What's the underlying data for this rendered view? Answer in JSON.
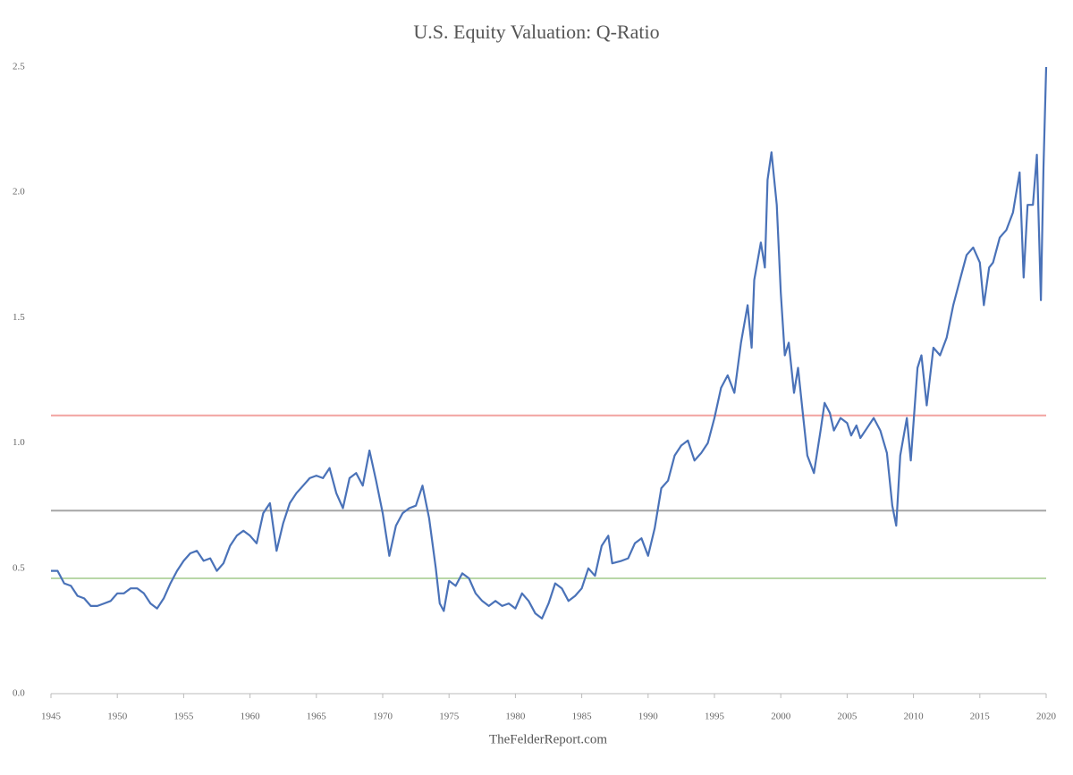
{
  "chart_data": {
    "type": "line",
    "title": "U.S. Equity Valuation: Q-Ratio",
    "source": "TheFelderReport.com",
    "xlim": [
      1945,
      2020
    ],
    "xticks": [
      1945,
      1950,
      1955,
      1960,
      1965,
      1970,
      1975,
      1980,
      1985,
      1990,
      1995,
      2000,
      2005,
      2010,
      2015,
      2020
    ],
    "ylim": [
      0,
      2.5
    ],
    "yticks": [
      {
        "value": 0,
        "label": "0.0"
      },
      0.5,
      {
        "value": 1,
        "label": "1.0"
      },
      1.5,
      {
        "value": 2,
        "label": "2.0"
      },
      2.5
    ],
    "grid": false,
    "reference_lines": [
      {
        "value": 1.11,
        "color": "#f2a3a0"
      },
      {
        "value": 0.73,
        "color": "#a6a6a6"
      },
      {
        "value": 0.46,
        "color": "#b9d7a8"
      }
    ],
    "x": [
      1945.0,
      1945.5,
      1946,
      1946.5,
      1947,
      1947.5,
      1948,
      1948.5,
      1949,
      1949.5,
      1950,
      1950.5,
      1951,
      1951.5,
      1952,
      1952.5,
      1953,
      1953.5,
      1954,
      1954.5,
      1955,
      1955.5,
      1956,
      1956.5,
      1957,
      1957.5,
      1958,
      1958.5,
      1959,
      1959.5,
      1960,
      1960.5,
      1961,
      1961.5,
      1962,
      1962.5,
      1963,
      1963.5,
      1964,
      1964.5,
      1965,
      1965.5,
      1966,
      1966.5,
      1967,
      1967.5,
      1968,
      1968.5,
      1969,
      1969.5,
      1970,
      1970.5,
      1971,
      1971.5,
      1972,
      1972.5,
      1973,
      1973.5,
      1974,
      1974.3,
      1974.6,
      1975,
      1975.5,
      1976,
      1976.5,
      1977,
      1977.5,
      1978,
      1978.5,
      1979,
      1979.5,
      1980,
      1980.5,
      1981,
      1981.5,
      1982,
      1982.5,
      1983,
      1983.5,
      1984,
      1984.5,
      1985,
      1985.5,
      1986,
      1986.5,
      1987,
      1987.3,
      1988,
      1988.5,
      1989,
      1989.5,
      1990,
      1990.5,
      1991,
      1991.5,
      1992,
      1992.5,
      1993,
      1993.5,
      1994,
      1994.5,
      1995,
      1995.5,
      1996,
      1996.5,
      1997,
      1997.5,
      1997.8,
      1998,
      1998.5,
      1998.8,
      1999,
      1999.3,
      1999.7,
      2000,
      2000.3,
      2000.6,
      2001,
      2001.3,
      2001.7,
      2002,
      2002.5,
      2003,
      2003.3,
      2003.7,
      2004,
      2004.5,
      2005,
      2005.3,
      2005.7,
      2006,
      2006.5,
      2007,
      2007.5,
      2008,
      2008.4,
      2008.7,
      2009,
      2009.5,
      2009.8,
      2010.3,
      2010.6,
      2011,
      2011.5,
      2012,
      2012.5,
      2013,
      2013.5,
      2014,
      2014.5,
      2015,
      2015.3,
      2015.7,
      2016,
      2016.5,
      2017,
      2017.5,
      2018,
      2018.3,
      2018.6,
      2019,
      2019.3,
      2019.6,
      2019.8,
      2020.0
    ],
    "series": [
      {
        "name": "Q-Ratio",
        "color": "#4a72b8",
        "values": [
          0.49,
          0.49,
          0.44,
          0.43,
          0.39,
          0.38,
          0.35,
          0.35,
          0.36,
          0.37,
          0.4,
          0.4,
          0.42,
          0.42,
          0.4,
          0.36,
          0.34,
          0.38,
          0.44,
          0.49,
          0.53,
          0.56,
          0.57,
          0.53,
          0.54,
          0.49,
          0.52,
          0.59,
          0.63,
          0.65,
          0.63,
          0.6,
          0.72,
          0.76,
          0.57,
          0.68,
          0.76,
          0.8,
          0.83,
          0.86,
          0.87,
          0.86,
          0.9,
          0.8,
          0.74,
          0.86,
          0.88,
          0.83,
          0.97,
          0.85,
          0.72,
          0.55,
          0.67,
          0.72,
          0.74,
          0.75,
          0.83,
          0.7,
          0.5,
          0.36,
          0.33,
          0.45,
          0.43,
          0.48,
          0.46,
          0.4,
          0.37,
          0.35,
          0.37,
          0.35,
          0.36,
          0.34,
          0.4,
          0.37,
          0.32,
          0.3,
          0.36,
          0.44,
          0.42,
          0.37,
          0.39,
          0.42,
          0.5,
          0.47,
          0.59,
          0.63,
          0.52,
          0.53,
          0.54,
          0.6,
          0.62,
          0.55,
          0.66,
          0.82,
          0.85,
          0.95,
          0.99,
          1.01,
          0.93,
          0.96,
          1.0,
          1.1,
          1.22,
          1.27,
          1.2,
          1.4,
          1.55,
          1.38,
          1.65,
          1.8,
          1.7,
          2.05,
          2.16,
          1.95,
          1.6,
          1.35,
          1.4,
          1.2,
          1.3,
          1.1,
          0.95,
          0.88,
          1.05,
          1.16,
          1.12,
          1.05,
          1.1,
          1.08,
          1.03,
          1.07,
          1.02,
          1.06,
          1.1,
          1.05,
          0.96,
          0.75,
          0.67,
          0.95,
          1.1,
          0.93,
          1.3,
          1.35,
          1.15,
          1.38,
          1.35,
          1.42,
          1.55,
          1.65,
          1.75,
          1.78,
          1.72,
          1.55,
          1.7,
          1.72,
          1.82,
          1.85,
          1.92,
          2.08,
          1.66,
          1.95,
          1.95,
          2.15,
          1.57,
          2.1,
          2.5
        ]
      }
    ]
  }
}
